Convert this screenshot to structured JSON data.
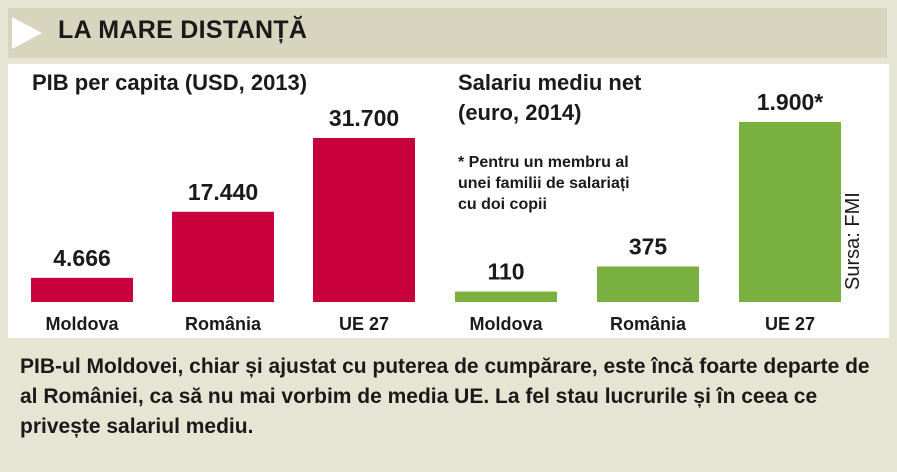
{
  "header": {
    "title": "LA MARE DISTANȚĂ"
  },
  "chart_data": [
    {
      "type": "bar",
      "title": "PIB per capita (USD, 2013)",
      "categories": [
        "Moldova",
        "România",
        "UE 27"
      ],
      "values": [
        4666,
        17440,
        31700
      ],
      "value_labels": [
        "4.666",
        "17.440",
        "31.700"
      ],
      "ylim": [
        0,
        31700
      ],
      "color": "#c8003c"
    },
    {
      "type": "bar",
      "title_lines": [
        "Salariu mediu net",
        "(euro, 2014)"
      ],
      "note_lines": [
        "* Pentru un membru al",
        "unei familii de salariați",
        "cu doi copii"
      ],
      "categories": [
        "Moldova",
        "România",
        "UE 27"
      ],
      "values": [
        110,
        375,
        1900
      ],
      "value_labels": [
        "110",
        "375",
        "1.900*"
      ],
      "ylim": [
        0,
        1900
      ],
      "color": "#7ab040"
    }
  ],
  "source": "Sursa: FMI",
  "footer": {
    "text": "PIB-ul Moldovei, chiar și ajustat cu puterea de cumpărare, este încă foarte departe de al României, ca să nu mai vorbim de media UE. La fel stau lucrurile și în ceea ce privește salariul mediu."
  }
}
